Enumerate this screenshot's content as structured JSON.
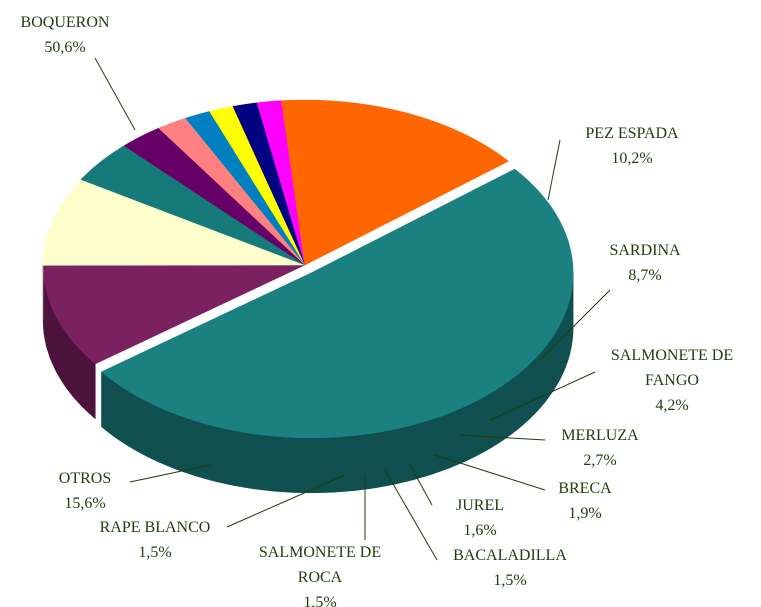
{
  "chart_data": {
    "type": "pie",
    "categories": [
      "BOQUERON",
      "PEZ ESPADA",
      "SARDINA",
      "SALMONETE DE FANGO",
      "MERLUZA",
      "BRECA",
      "JUREL",
      "BACALADILLA",
      "SALMONETE DE ROCA",
      "RAPE BLANCO",
      "OTROS"
    ],
    "values": [
      50.6,
      10.2,
      8.7,
      4.2,
      2.7,
      1.9,
      1.6,
      1.5,
      1.5,
      1.5,
      15.6
    ],
    "value_labels": [
      "50,6%",
      "10,2%",
      "8,7%",
      "4,2%",
      "2,7%",
      "1,9%",
      "1,6%",
      "1,5%",
      "1,5%",
      "1,5%",
      "15,6%"
    ],
    "colors": [
      "#1a8080",
      "#7b2060",
      "#ffffcc",
      "#167a7a",
      "#660066",
      "#ff8080",
      "#0080c0",
      "#ffff00",
      "#000080",
      "#ff00ff",
      "#ff6600"
    ]
  }
}
